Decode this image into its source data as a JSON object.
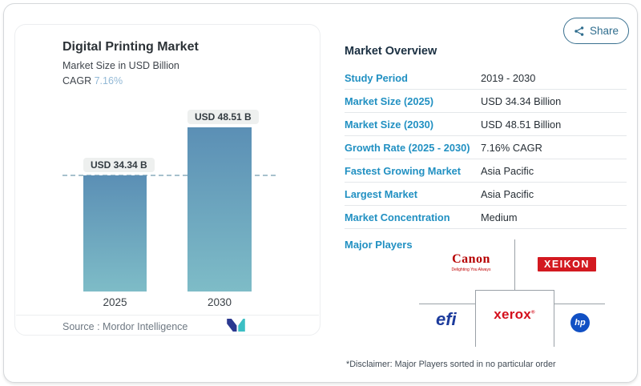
{
  "share": {
    "label": "Share"
  },
  "chart": {
    "title": "Digital Printing Market",
    "subtitle": "Market Size in USD Billion",
    "cagr_label": "CAGR",
    "cagr_value": "7.16%",
    "source_label": "Source :",
    "source_value": "Mordor Intelligence"
  },
  "chart_data": {
    "type": "bar",
    "title": "Digital Printing Market",
    "subtitle": "Market Size in USD Billion",
    "categories": [
      "2025",
      "2030"
    ],
    "values": [
      34.34,
      48.51
    ],
    "bar_labels": [
      "USD 34.34 B",
      "USD 48.51 B"
    ],
    "unit": "USD Billion",
    "cagr": "7.16%",
    "dashed_reference_line_at": 34.34,
    "axes_hidden": true,
    "gridlines": false,
    "bar_gradient": [
      "#5b8fb5",
      "#7ebcc7"
    ]
  },
  "overview": {
    "title": "Market Overview",
    "rows": [
      {
        "label": "Study Period",
        "value": "2019 - 2030"
      },
      {
        "label": "Market Size (2025)",
        "value": "USD 34.34 Billion"
      },
      {
        "label": "Market Size (2030)",
        "value": "USD 48.51 Billion"
      },
      {
        "label": "Growth Rate (2025 - 2030)",
        "value": "7.16% CAGR"
      },
      {
        "label": "Fastest Growing Market",
        "value": "Asia Pacific"
      },
      {
        "label": "Largest Market",
        "value": "Asia Pacific"
      },
      {
        "label": "Market Concentration",
        "value": "Medium"
      }
    ]
  },
  "players": {
    "label": "Major Players",
    "canon": {
      "name": "Canon",
      "tagline": "Delighting You Always"
    },
    "xeikon": {
      "name": "XEIKON"
    },
    "efi": {
      "name": "efi"
    },
    "xerox": {
      "name": "xerox",
      "reg": "®"
    },
    "hp": {
      "name": "hp"
    },
    "disclaimer": "*Disclaimer: Major Players sorted in no particular order"
  },
  "colors": {
    "label_blue": "#2190c2",
    "header_navy": "#1b3042",
    "cagr_value_blue": "#93b9d6",
    "bar_top": "#5b8fb5",
    "bar_bottom": "#7ebcc7",
    "share_teal": "#2f6d8e",
    "canon_red": "#b60000",
    "xeikon_red": "#d31920",
    "xerox_red": "#d40f1c",
    "efi_blue": "#1c3b9c",
    "hp_blue": "#1150c4"
  }
}
